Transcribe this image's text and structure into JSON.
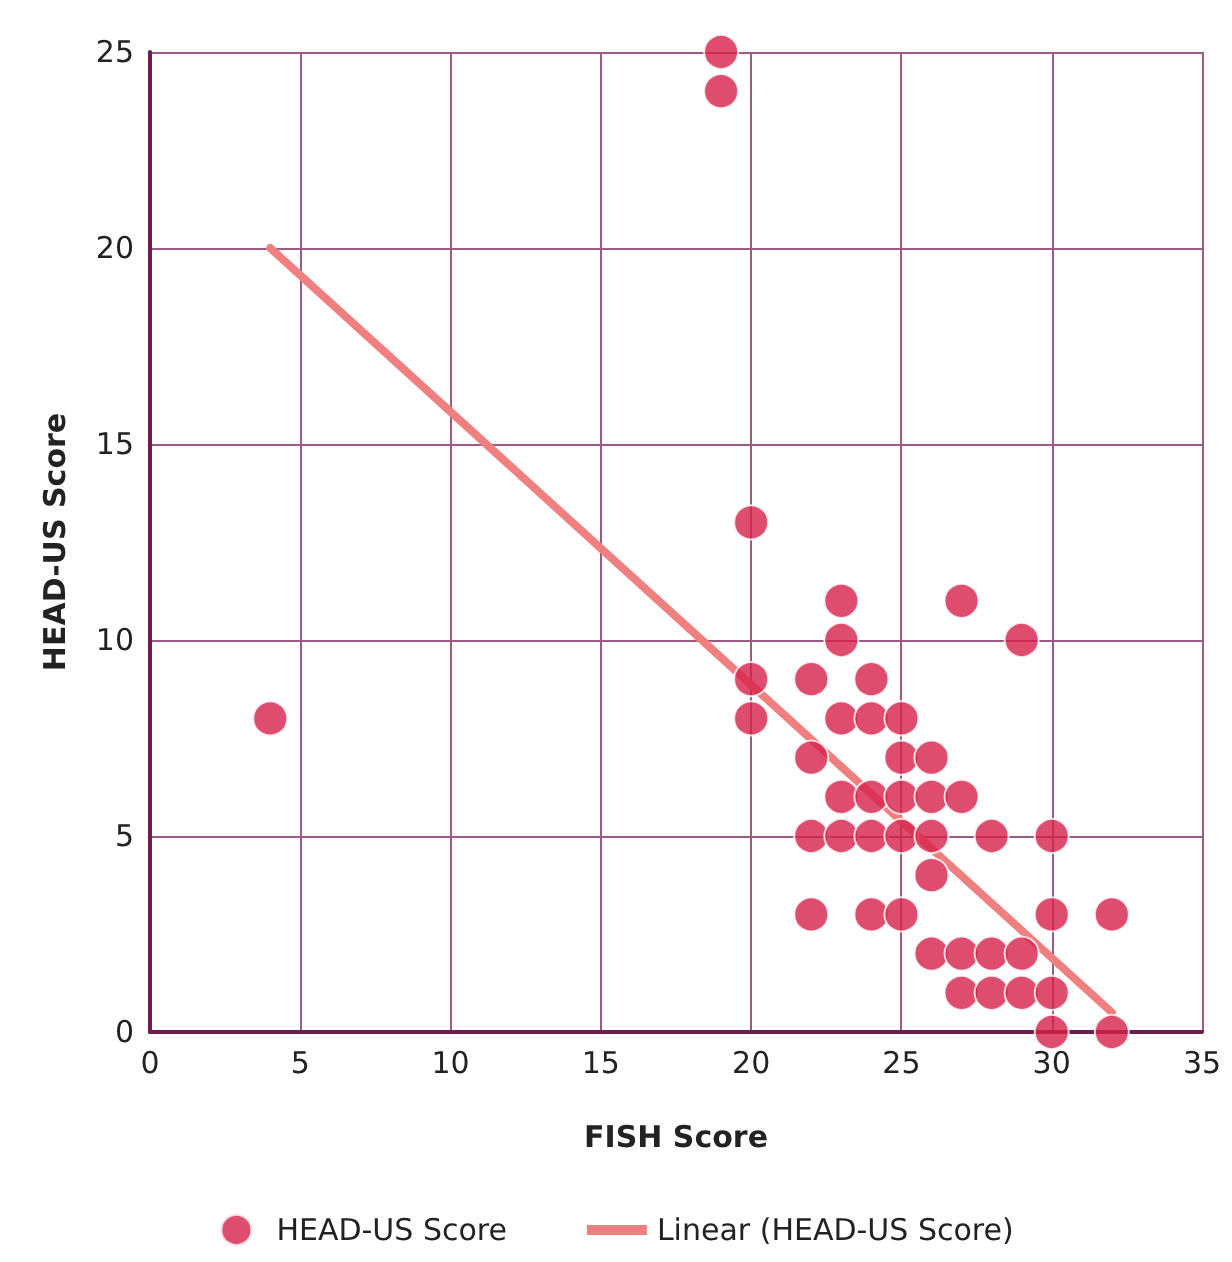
{
  "chart_data": {
    "type": "scatter",
    "xlabel": "FISH Score",
    "ylabel": "HEAD-US Score",
    "xlim": [
      0,
      35
    ],
    "xticks": [
      0,
      5,
      10,
      15,
      20,
      25,
      30,
      35
    ],
    "ylim": [
      0,
      25
    ],
    "yticks": [
      0,
      5,
      10,
      15,
      20,
      25
    ],
    "grid": true,
    "legend": "bottom",
    "marker": "circle",
    "series": [
      {
        "name": "HEAD-US Score",
        "color": "#d7214a",
        "x": [
          19,
          19,
          4,
          20,
          20,
          20,
          23,
          27,
          23,
          29,
          22,
          24,
          23,
          24,
          25,
          22,
          25,
          26,
          23,
          24,
          25,
          26,
          27,
          22,
          23,
          24,
          25,
          26,
          28,
          30,
          26,
          22,
          24,
          25,
          30,
          32,
          26,
          27,
          28,
          29,
          27,
          28,
          29,
          30,
          30,
          32
        ],
        "values": [
          25,
          24,
          8,
          13,
          9,
          8,
          11,
          11,
          10,
          10,
          9,
          9,
          8,
          8,
          8,
          7,
          7,
          7,
          6,
          6,
          6,
          6,
          6,
          5,
          5,
          5,
          5,
          5,
          5,
          5,
          4,
          3,
          3,
          3,
          3,
          3,
          2,
          2,
          2,
          2,
          1,
          1,
          1,
          1,
          0,
          0
        ]
      },
      {
        "name": "Linear (HEAD-US Score)",
        "type": "line",
        "color": "#f08080",
        "marker": "none",
        "line_style": "solid",
        "x": [
          4,
          32
        ],
        "values": [
          20,
          0.5
        ]
      }
    ]
  }
}
